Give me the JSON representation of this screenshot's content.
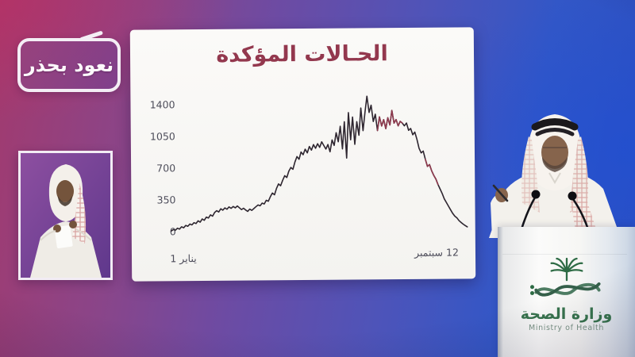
{
  "overlay": {
    "campaign_badge": "نعود بحذر"
  },
  "chart_data": {
    "type": "line",
    "title": "الحـالات المؤكدة",
    "title_color": "#93384e",
    "line_color": "#2e2630",
    "accent_color": "#8e3a4e",
    "yticks": [
      "1400",
      "1050",
      "700",
      "350",
      "0"
    ],
    "ylim": [
      0,
      1400
    ],
    "x_start_label": "1 يناير",
    "x_end_label": "12 سبتمبر",
    "grid": "off",
    "legend": "none",
    "values": [
      10,
      25,
      18,
      40,
      30,
      55,
      45,
      70,
      60,
      85,
      75,
      100,
      90,
      120,
      105,
      140,
      125,
      160,
      150,
      185,
      170,
      210,
      230,
      215,
      250,
      235,
      260,
      245,
      270,
      255,
      275,
      260,
      280,
      260,
      240,
      255,
      235,
      220,
      245,
      230,
      250,
      270,
      290,
      280,
      310,
      300,
      340,
      330,
      380,
      420,
      400,
      470,
      520,
      500,
      560,
      610,
      590,
      660,
      700,
      680,
      760,
      820,
      790,
      870,
      840,
      900,
      860,
      930,
      890,
      950,
      910,
      960,
      920,
      980,
      940,
      900,
      950,
      870,
      1000,
      940,
      1080,
      980,
      1150,
      900,
      1200,
      800,
      1300,
      1000,
      1250,
      950,
      1200,
      1050,
      1350,
      1100,
      1300,
      1480,
      1300,
      1380,
      1200,
      1280,
      1100,
      1250,
      1150,
      1220,
      1120,
      1240,
      1160,
      1320,
      1180,
      1220,
      1150,
      1200,
      1180,
      1150,
      1180,
      1100,
      1120,
      1050,
      1080,
      1000,
      900,
      850,
      870,
      780,
      700,
      720,
      650,
      600,
      560,
      500,
      450,
      400,
      340,
      300,
      260,
      220,
      180,
      150,
      130,
      100,
      80,
      60,
      45,
      30
    ],
    "accent_segments": [
      [
        100,
        112
      ],
      [
        123,
        129
      ]
    ]
  },
  "podium": {
    "ministry_name_ar": "وزارة الصحة",
    "ministry_name_en": "Ministry of Health",
    "logo_green": "#2d6b44"
  }
}
